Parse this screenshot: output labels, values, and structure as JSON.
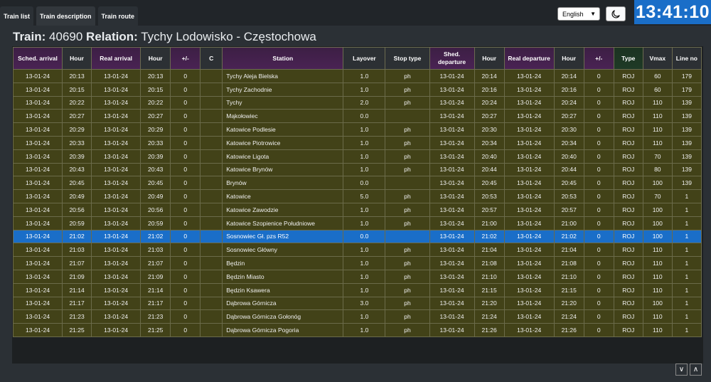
{
  "tabs": [
    "Train list",
    "Train description",
    "Train route"
  ],
  "language": "English",
  "clock": "13:41:10",
  "train": {
    "label": "Train:",
    "number": "40690",
    "relation_label": "Relation:",
    "relation": "Tychy Lodowisko - Częstochowa"
  },
  "columns": [
    "Sched. arrival",
    "Hour",
    "Real arrival",
    "Hour",
    "+/-",
    "C",
    "Station",
    "Layover",
    "Stop type",
    "Shed. departure",
    "Hour",
    "Real departure",
    "Hour",
    "+/-",
    "Type",
    "Vmax",
    "Line no"
  ],
  "rows": [
    [
      "13-01-24",
      "20:13",
      "13-01-24",
      "20:13",
      "0",
      "",
      "Tychy Aleja Bielska",
      "1.0",
      "ph",
      "13-01-24",
      "20:14",
      "13-01-24",
      "20:14",
      "0",
      "ROJ",
      "60",
      "179"
    ],
    [
      "13-01-24",
      "20:15",
      "13-01-24",
      "20:15",
      "0",
      "",
      "Tychy Zachodnie",
      "1.0",
      "ph",
      "13-01-24",
      "20:16",
      "13-01-24",
      "20:16",
      "0",
      "ROJ",
      "60",
      "179"
    ],
    [
      "13-01-24",
      "20:22",
      "13-01-24",
      "20:22",
      "0",
      "",
      "Tychy",
      "2.0",
      "ph",
      "13-01-24",
      "20:24",
      "13-01-24",
      "20:24",
      "0",
      "ROJ",
      "110",
      "139"
    ],
    [
      "13-01-24",
      "20:27",
      "13-01-24",
      "20:27",
      "0",
      "",
      "Mąkołowiec",
      "0.0",
      "",
      "13-01-24",
      "20:27",
      "13-01-24",
      "20:27",
      "0",
      "ROJ",
      "110",
      "139"
    ],
    [
      "13-01-24",
      "20:29",
      "13-01-24",
      "20:29",
      "0",
      "",
      "Katowice Podlesie",
      "1.0",
      "ph",
      "13-01-24",
      "20:30",
      "13-01-24",
      "20:30",
      "0",
      "ROJ",
      "110",
      "139"
    ],
    [
      "13-01-24",
      "20:33",
      "13-01-24",
      "20:33",
      "0",
      "",
      "Katowice Piotrowice",
      "1.0",
      "ph",
      "13-01-24",
      "20:34",
      "13-01-24",
      "20:34",
      "0",
      "ROJ",
      "110",
      "139"
    ],
    [
      "13-01-24",
      "20:39",
      "13-01-24",
      "20:39",
      "0",
      "",
      "Katowice Ligota",
      "1.0",
      "ph",
      "13-01-24",
      "20:40",
      "13-01-24",
      "20:40",
      "0",
      "ROJ",
      "70",
      "139"
    ],
    [
      "13-01-24",
      "20:43",
      "13-01-24",
      "20:43",
      "0",
      "",
      "Katowice Brynów",
      "1.0",
      "ph",
      "13-01-24",
      "20:44",
      "13-01-24",
      "20:44",
      "0",
      "ROJ",
      "80",
      "139"
    ],
    [
      "13-01-24",
      "20:45",
      "13-01-24",
      "20:45",
      "0",
      "",
      "Brynów",
      "0.0",
      "",
      "13-01-24",
      "20:45",
      "13-01-24",
      "20:45",
      "0",
      "ROJ",
      "100",
      "139"
    ],
    [
      "13-01-24",
      "20:49",
      "13-01-24",
      "20:49",
      "0",
      "",
      "Katowice",
      "5.0",
      "ph",
      "13-01-24",
      "20:53",
      "13-01-24",
      "20:53",
      "0",
      "ROJ",
      "70",
      "1"
    ],
    [
      "13-01-24",
      "20:56",
      "13-01-24",
      "20:56",
      "0",
      "",
      "Katowice Zawodzie",
      "1.0",
      "ph",
      "13-01-24",
      "20:57",
      "13-01-24",
      "20:57",
      "0",
      "ROJ",
      "100",
      "1"
    ],
    [
      "13-01-24",
      "20:59",
      "13-01-24",
      "20:59",
      "0",
      "",
      "Katowice Szopienice Południowe",
      "1.0",
      "ph",
      "13-01-24",
      "21:00",
      "13-01-24",
      "21:00",
      "0",
      "ROJ",
      "100",
      "1"
    ],
    [
      "13-01-24",
      "21:02",
      "13-01-24",
      "21:02",
      "0",
      "",
      "Sosnowiec Gł. pzs R52",
      "0.0",
      "",
      "13-01-24",
      "21:02",
      "13-01-24",
      "21:02",
      "0",
      "ROJ",
      "100",
      "1"
    ],
    [
      "13-01-24",
      "21:03",
      "13-01-24",
      "21:03",
      "0",
      "",
      "Sosnowiec Główny",
      "1.0",
      "ph",
      "13-01-24",
      "21:04",
      "13-01-24",
      "21:04",
      "0",
      "ROJ",
      "110",
      "1"
    ],
    [
      "13-01-24",
      "21:07",
      "13-01-24",
      "21:07",
      "0",
      "",
      "Będzin",
      "1.0",
      "ph",
      "13-01-24",
      "21:08",
      "13-01-24",
      "21:08",
      "0",
      "ROJ",
      "110",
      "1"
    ],
    [
      "13-01-24",
      "21:09",
      "13-01-24",
      "21:09",
      "0",
      "",
      "Będzin Miasto",
      "1.0",
      "ph",
      "13-01-24",
      "21:10",
      "13-01-24",
      "21:10",
      "0",
      "ROJ",
      "110",
      "1"
    ],
    [
      "13-01-24",
      "21:14",
      "13-01-24",
      "21:14",
      "0",
      "",
      "Będzin Ksawera",
      "1.0",
      "ph",
      "13-01-24",
      "21:15",
      "13-01-24",
      "21:15",
      "0",
      "ROJ",
      "110",
      "1"
    ],
    [
      "13-01-24",
      "21:17",
      "13-01-24",
      "21:17",
      "0",
      "",
      "Dąbrowa Górnicza",
      "3.0",
      "ph",
      "13-01-24",
      "21:20",
      "13-01-24",
      "21:20",
      "0",
      "ROJ",
      "100",
      "1"
    ],
    [
      "13-01-24",
      "21:23",
      "13-01-24",
      "21:23",
      "0",
      "",
      "Dąbrowa Górnicza Gołonóg",
      "1.0",
      "ph",
      "13-01-24",
      "21:24",
      "13-01-24",
      "21:24",
      "0",
      "ROJ",
      "110",
      "1"
    ],
    [
      "13-01-24",
      "21:25",
      "13-01-24",
      "21:25",
      "0",
      "",
      "Dąbrowa Górnicza Pogoria",
      "1.0",
      "ph",
      "13-01-24",
      "21:26",
      "13-01-24",
      "21:26",
      "0",
      "ROJ",
      "110",
      "1"
    ]
  ],
  "selected_row": 12,
  "scroll_down": "∨",
  "scroll_up": "∧",
  "colors": {
    "accent": "#1a6ec8",
    "row_bg": "#424218",
    "header_purple": "#4a2354",
    "header_green": "#1f3a26"
  }
}
